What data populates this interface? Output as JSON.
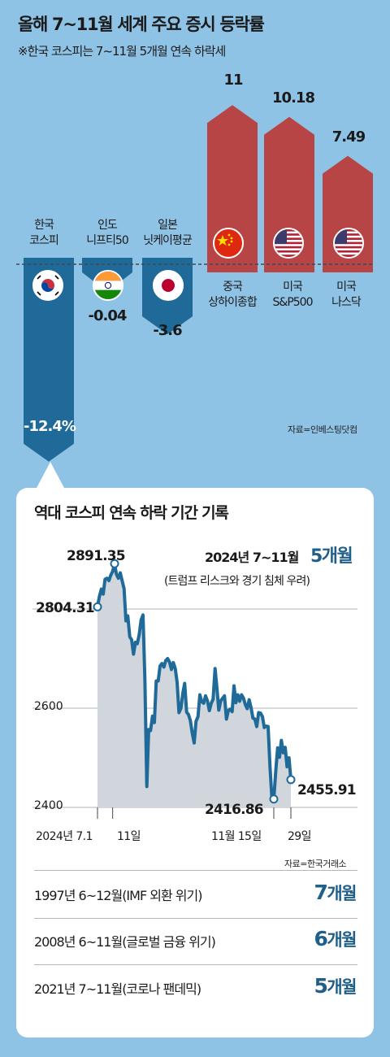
{
  "header": {
    "title": "올해 7~11월 세계 주요 증시 등락률",
    "subtitle": "※한국 코스피는 7~11월 5개월 연속 하락세"
  },
  "top_chart": {
    "source": "자료=인베스팅닷컴"
  },
  "colors": {
    "background": "#8fc3e6",
    "negative_bar": "#1f6a99",
    "positive_bar": "#b84545",
    "line": "#1f6a99",
    "area": "#d0d6dc",
    "accent_value": "#1f5f8a"
  },
  "kospi_chart": {
    "title": "역대 코스피 연속 하락 기간 기록",
    "period": "2024년 7~11월",
    "period_value": "5개월",
    "period_note": "(트럼프 리스크와 경기 침체 우려)",
    "source": "자료=한국거래소",
    "peak_label": "2891.35",
    "start_label": "2804.31",
    "low_label": "2416.86",
    "end_label": "2455.91"
  },
  "records": [
    {
      "period": "1997년 6~12월(IMF 외환 위기)",
      "value": "7",
      "unit": "개월"
    },
    {
      "period": "2008년 6~11월(글로벌 금융 위기)",
      "value": "6",
      "unit": "개월"
    },
    {
      "period": "2021년 7~11월(코로나 팬데믹)",
      "value": "5",
      "unit": "개월"
    }
  ],
  "chart_data": [
    {
      "type": "bar",
      "categories": [
        "한국\n코스피",
        "인도\n니프티50",
        "일본\n닛케이평균",
        "중국\n상하이종합",
        "미국\nS&P500",
        "미국\n나스닥"
      ],
      "values": [
        -12.4,
        -0.04,
        -3.6,
        11,
        10.18,
        7.49
      ],
      "value_labels": [
        "-12.4%",
        "-0.04",
        "-3.6",
        "11",
        "10.18",
        "7.49"
      ],
      "flags": [
        "korea-flag",
        "india-flag",
        "japan-flag",
        "china-flag",
        "usa-flag",
        "usa-flag"
      ],
      "title": "올해 7~11월 세계 주요 증시 등락률"
    },
    {
      "type": "line",
      "ylim": [
        2380,
        2910
      ],
      "y_ticks": [
        2400,
        2600
      ],
      "x_tick_labels": [
        "2024년 7.1",
        "11일",
        "11월 15일",
        "29일"
      ],
      "x_tick_index": [
        0,
        8,
        93,
        102
      ],
      "values": [
        2804.31,
        2825,
        2840,
        2830,
        2860,
        2862,
        2857,
        2868,
        2876,
        2891.35,
        2870,
        2862,
        2873,
        2857,
        2841,
        2776,
        2786,
        2744,
        2738,
        2709,
        2733,
        2730,
        2748,
        2778,
        2788,
        2660,
        2442,
        2557,
        2555,
        2584,
        2571,
        2655,
        2655,
        2685,
        2690,
        2683,
        2696,
        2700,
        2693,
        2678,
        2692,
        2680,
        2652,
        2591,
        2600,
        2630,
        2650,
        2592,
        2587,
        2575,
        2549,
        2530,
        2574,
        2583,
        2627,
        2613,
        2610,
        2625,
        2615,
        2595,
        2610,
        2618,
        2680,
        2640,
        2596,
        2615,
        2620,
        2625,
        2578,
        2595,
        2598,
        2593,
        2645,
        2611,
        2627,
        2614,
        2627,
        2620,
        2607,
        2599,
        2617,
        2601,
        2580,
        2578,
        2563,
        2591,
        2590,
        2583,
        2561,
        2564,
        2563,
        2482,
        2417,
        2416.86,
        2471,
        2520,
        2501,
        2535,
        2510,
        2521,
        2482,
        2500,
        2455.91
      ]
    }
  ]
}
